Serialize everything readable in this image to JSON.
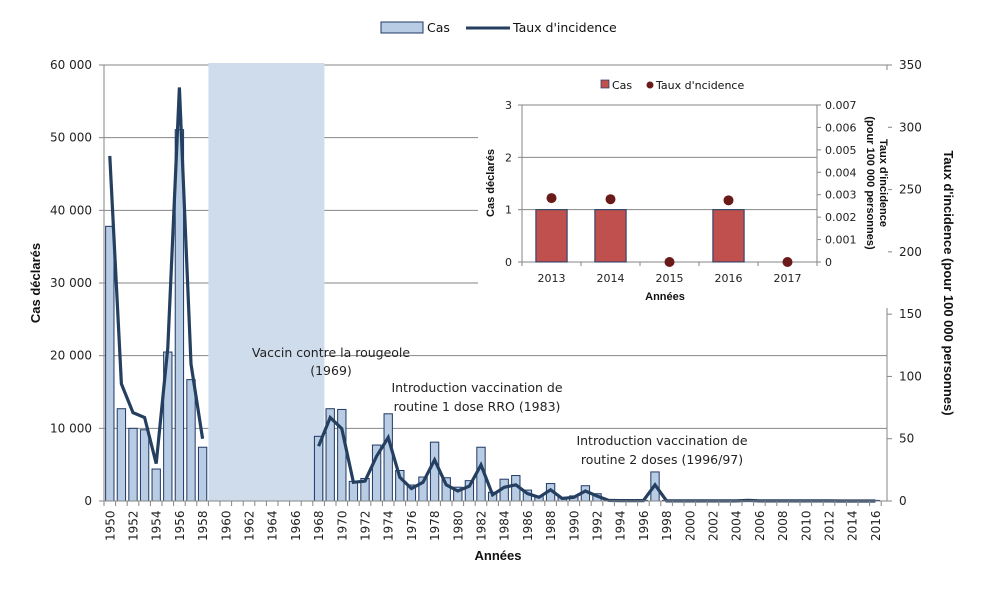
{
  "chart_data": [
    {
      "type": "bar+line",
      "title": "",
      "legend": {
        "position": "top-center",
        "entries": [
          "Cas",
          "Taux d'incidence"
        ]
      },
      "xlabel": "Années",
      "ylabel": "Cas déclarés",
      "y2label": "Taux d'incidence (pour 100 000  personnes)",
      "ylim": [
        0,
        60000
      ],
      "y2lim": [
        0,
        350
      ],
      "yticks": [
        "0",
        "10 000",
        "20 000",
        "30 000",
        "40 000",
        "50 000",
        "60 000"
      ],
      "yticks_values": [
        0,
        10000,
        20000,
        30000,
        40000,
        50000,
        60000
      ],
      "y2ticks": [
        "0",
        "50",
        "100",
        "150",
        "200",
        "250",
        "300",
        "350"
      ],
      "y2ticks_values": [
        0,
        50,
        100,
        150,
        200,
        250,
        300,
        350
      ],
      "grid": true,
      "x": [
        1950,
        1951,
        1952,
        1953,
        1954,
        1955,
        1956,
        1957,
        1958,
        1959,
        1960,
        1961,
        1962,
        1963,
        1964,
        1965,
        1966,
        1967,
        1968,
        1969,
        1970,
        1971,
        1972,
        1973,
        1974,
        1975,
        1976,
        1977,
        1978,
        1979,
        1980,
        1981,
        1982,
        1983,
        1984,
        1985,
        1986,
        1987,
        1988,
        1989,
        1990,
        1991,
        1992,
        1993,
        1994,
        1995,
        1996,
        1997,
        1998,
        1999,
        2000,
        2001,
        2002,
        2003,
        2004,
        2005,
        2006,
        2007,
        2008,
        2009,
        2010,
        2011,
        2012,
        2013,
        2014,
        2015,
        2016
      ],
      "xtick_labels": [
        "1950",
        "1952",
        "1954",
        "1956",
        "1958",
        "1960",
        "1962",
        "1964",
        "1966",
        "1968",
        "1970",
        "1972",
        "1974",
        "1976",
        "1978",
        "1980",
        "1982",
        "1984",
        "1986",
        "1988",
        "1990",
        "1992",
        "1994",
        "1996",
        "1998",
        "2000",
        "2002",
        "2004",
        "2006",
        "2008",
        "2010",
        "2012",
        "2014",
        "2016"
      ],
      "series": [
        {
          "name": "Cas",
          "type": "bar",
          "axis": "left",
          "color": "#b8cce4",
          "edge": "#1f3864",
          "values": [
            37800,
            12700,
            10000,
            9800,
            4400,
            20500,
            51100,
            16700,
            7400,
            null,
            null,
            null,
            null,
            null,
            null,
            null,
            null,
            null,
            8900,
            12700,
            12600,
            2700,
            3100,
            7700,
            12000,
            4200,
            2200,
            3300,
            8100,
            3200,
            1900,
            2800,
            7400,
            1200,
            3000,
            3500,
            1500,
            700,
            2400,
            500,
            700,
            2100,
            1000,
            100,
            50,
            50,
            50,
            4000,
            20,
            10,
            10,
            10,
            10,
            10,
            10,
            150,
            10,
            10,
            10,
            10,
            10,
            10,
            10,
            1,
            1,
            0,
            1
          ]
        },
        {
          "name": "Taux d'incidence",
          "type": "line",
          "axis": "right",
          "color": "#243f60",
          "values": [
            277,
            94,
            71,
            67,
            30,
            123,
            332,
            110,
            50,
            null,
            null,
            null,
            null,
            null,
            null,
            null,
            null,
            null,
            44,
            67,
            58,
            15,
            16,
            36,
            51,
            19,
            10,
            15,
            33,
            13,
            8,
            12,
            29,
            5,
            11,
            13,
            6,
            3,
            9,
            2,
            3,
            8,
            4,
            0.5,
            0.3,
            0.3,
            0.3,
            13,
            0.1,
            0.05,
            0.05,
            0.05,
            0.05,
            0.05,
            0.05,
            0.5,
            0.05,
            0.05,
            0.05,
            0.05,
            0.05,
            0.05,
            0.05,
            0.003,
            0.003,
            0,
            0.003
          ]
        }
      ],
      "shaded_region": {
        "from": 1958.5,
        "to": 1968.5,
        "color": "#cfdcec"
      },
      "annotations": [
        {
          "text_lines": [
            "Vaccin contre la rougeole",
            "(1969)"
          ]
        },
        {
          "text_lines": [
            "Introduction vaccination de",
            "routine 1 dose RRO (1983)"
          ]
        },
        {
          "text_lines": [
            "Introduction vaccination de",
            "routine 2 doses (1996/97)"
          ]
        }
      ]
    },
    {
      "type": "bar+scatter",
      "title": "",
      "legend": {
        "position": "top-center",
        "entries": [
          "Cas",
          "Taux d'ncidence"
        ]
      },
      "xlabel": "Années",
      "ylabel": "Cas déclarés",
      "y2label_lines": [
        "Taux d'incidence",
        "(pour 100 000 personnes)"
      ],
      "categories": [
        "2013",
        "2014",
        "2015",
        "2016",
        "2017"
      ],
      "ylim": [
        0,
        3
      ],
      "y2lim": [
        0,
        0.007
      ],
      "yticks": [
        "0",
        "1",
        "2",
        "3"
      ],
      "y2ticks": [
        "0",
        "0.001",
        "0.002",
        "0.003",
        "0.004",
        "0.005",
        "0.006",
        "0.007"
      ],
      "grid": true,
      "series": [
        {
          "name": "Cas",
          "type": "bar",
          "axis": "left",
          "color": "#c0504d",
          "edge": "#1f3864",
          "values": [
            1,
            1,
            0,
            1,
            0
          ]
        },
        {
          "name": "Taux d'ncidence",
          "type": "scatter",
          "axis": "right",
          "color": "#6b1a1a",
          "values": [
            0.00285,
            0.0028,
            0,
            0.00275,
            0
          ]
        }
      ]
    }
  ]
}
